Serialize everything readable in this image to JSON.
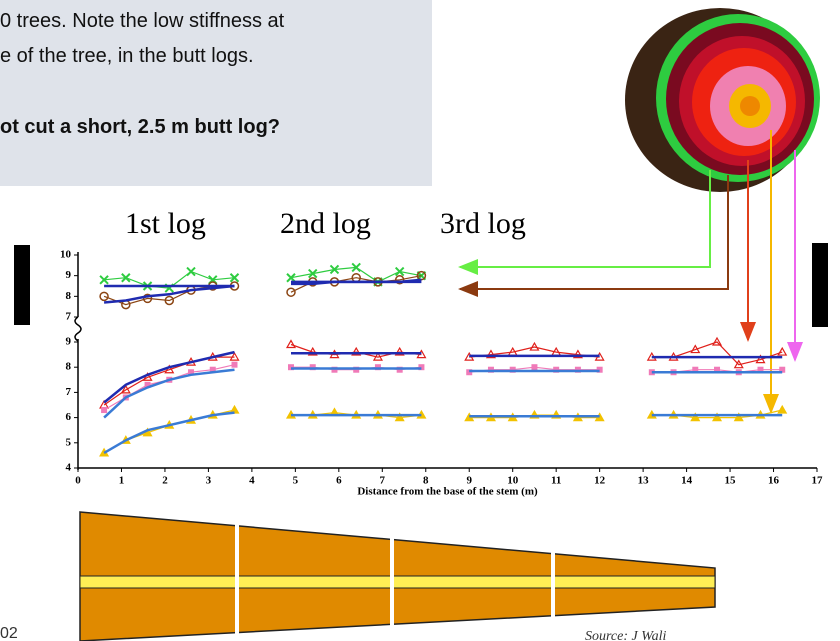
{
  "text_box": {
    "lines": [
      "0 trees.  Note the low stiffness at",
      "e of the tree, in the butt logs.",
      "ot cut a short, 2.5 m butt log?"
    ]
  },
  "log_labels": [
    "1st log",
    "2nd log",
    "3rd log"
  ],
  "footer": {
    "left": "02",
    "source": "Source: J Wali"
  },
  "chart_data": [
    {
      "type": "line",
      "xlim": [
        0,
        17
      ],
      "ylim": [
        7,
        10
      ],
      "yticks": [
        7,
        8,
        9,
        10
      ],
      "x": [
        0.6,
        1.1,
        1.6,
        2.1,
        2.6,
        3.1,
        3.6,
        null,
        4.9,
        5.4,
        5.9,
        6.4,
        6.9,
        7.4,
        7.9
      ],
      "series": [
        {
          "color": "#2ecc40",
          "marker": "x",
          "values": [
            8.8,
            8.9,
            8.5,
            8.4,
            9.2,
            8.8,
            8.9,
            null,
            8.9,
            9.1,
            9.3,
            9.4,
            8.7,
            9.2,
            9.0
          ]
        },
        {
          "color": "#8b4513",
          "marker": "circle",
          "values": [
            8.0,
            7.6,
            7.9,
            7.8,
            8.3,
            8.5,
            8.5,
            null,
            8.2,
            8.7,
            8.7,
            8.9,
            8.7,
            8.8,
            9.0
          ]
        },
        {
          "color": "#1f2bb0",
          "marker": "none",
          "values": [
            8.5,
            8.5,
            8.5,
            8.5,
            8.5,
            8.5,
            8.5,
            null,
            8.7,
            8.7,
            8.7,
            8.7,
            8.7,
            8.7,
            8.7
          ]
        },
        {
          "color": "#1f2bb0",
          "marker": "none",
          "values": [
            7.7,
            7.8,
            8.0,
            8.1,
            8.3,
            8.4,
            8.5,
            null,
            8.6,
            8.6,
            8.7,
            8.7,
            8.7,
            8.7,
            8.8
          ]
        }
      ]
    },
    {
      "type": "line",
      "xlim": [
        0,
        17
      ],
      "ylim": [
        4,
        9
      ],
      "yticks": [
        4,
        5,
        6,
        7,
        8,
        9
      ],
      "xticks": [
        0,
        1,
        2,
        3,
        4,
        5,
        6,
        7,
        8,
        9,
        10,
        11,
        12,
        13,
        14,
        15,
        16,
        17
      ],
      "xlabel": "Distance from the base of the stem (m)",
      "x": [
        0.6,
        1.1,
        1.6,
        2.1,
        2.6,
        3.1,
        3.6,
        null,
        4.9,
        5.4,
        5.9,
        6.4,
        6.9,
        7.4,
        7.9,
        null,
        9.0,
        9.5,
        10.0,
        10.5,
        11.0,
        11.5,
        12.0,
        null,
        13.2,
        13.7,
        14.2,
        14.7,
        15.2,
        15.7,
        16.2
      ],
      "series": [
        {
          "color": "#e0201b",
          "marker": "triangle",
          "values": [
            6.5,
            7.1,
            7.6,
            7.9,
            8.2,
            8.4,
            8.4,
            null,
            8.9,
            8.6,
            8.5,
            8.6,
            8.4,
            8.6,
            8.5,
            null,
            8.4,
            8.5,
            8.6,
            8.8,
            8.6,
            8.5,
            8.4,
            null,
            8.4,
            8.4,
            8.7,
            9.0,
            8.1,
            8.3,
            8.6
          ]
        },
        {
          "color": "#f07ab8",
          "marker": "square",
          "values": [
            6.3,
            6.8,
            7.3,
            7.5,
            7.8,
            7.9,
            8.1,
            null,
            8.0,
            8.0,
            7.9,
            7.9,
            8.0,
            7.9,
            8.0,
            null,
            7.8,
            7.9,
            7.9,
            8.0,
            7.9,
            7.9,
            7.9,
            null,
            7.8,
            7.8,
            7.9,
            7.9,
            7.8,
            7.9,
            7.9
          ]
        },
        {
          "color": "#f2c200",
          "marker": "triangle-filled",
          "values": [
            4.6,
            5.1,
            5.4,
            5.7,
            5.9,
            6.1,
            6.3,
            null,
            6.1,
            6.1,
            6.2,
            6.1,
            6.1,
            6.0,
            6.1,
            null,
            6.0,
            6.0,
            6.0,
            6.1,
            6.1,
            6.0,
            6.0,
            null,
            6.1,
            6.1,
            6.0,
            6.0,
            6.0,
            6.1,
            6.3
          ]
        },
        {
          "color": "#1f2bb0",
          "marker": "none",
          "values": [
            6.6,
            7.3,
            7.7,
            8.0,
            8.2,
            8.4,
            8.6,
            null,
            8.55,
            8.55,
            8.55,
            8.55,
            8.55,
            8.55,
            8.55,
            null,
            8.45,
            8.45,
            8.45,
            8.45,
            8.45,
            8.45,
            8.45,
            null,
            8.4,
            8.4,
            8.4,
            8.4,
            8.4,
            8.4,
            8.4
          ]
        },
        {
          "color": "#3a7bd5",
          "marker": "none",
          "values": [
            6.0,
            6.8,
            7.2,
            7.5,
            7.7,
            7.8,
            7.9,
            null,
            7.95,
            7.95,
            7.95,
            7.95,
            7.95,
            7.95,
            7.95,
            null,
            7.85,
            7.85,
            7.85,
            7.85,
            7.85,
            7.85,
            7.85,
            null,
            7.8,
            7.8,
            7.8,
            7.8,
            7.8,
            7.8,
            7.8
          ]
        },
        {
          "color": "#3a7bd5",
          "marker": "none",
          "values": [
            4.6,
            5.1,
            5.5,
            5.7,
            5.9,
            6.1,
            6.2,
            null,
            6.1,
            6.1,
            6.1,
            6.1,
            6.1,
            6.1,
            6.1,
            null,
            6.05,
            6.05,
            6.05,
            6.05,
            6.05,
            6.05,
            6.05,
            null,
            6.1,
            6.1,
            6.1,
            6.1,
            6.1,
            6.1,
            6.1
          ]
        }
      ]
    }
  ]
}
